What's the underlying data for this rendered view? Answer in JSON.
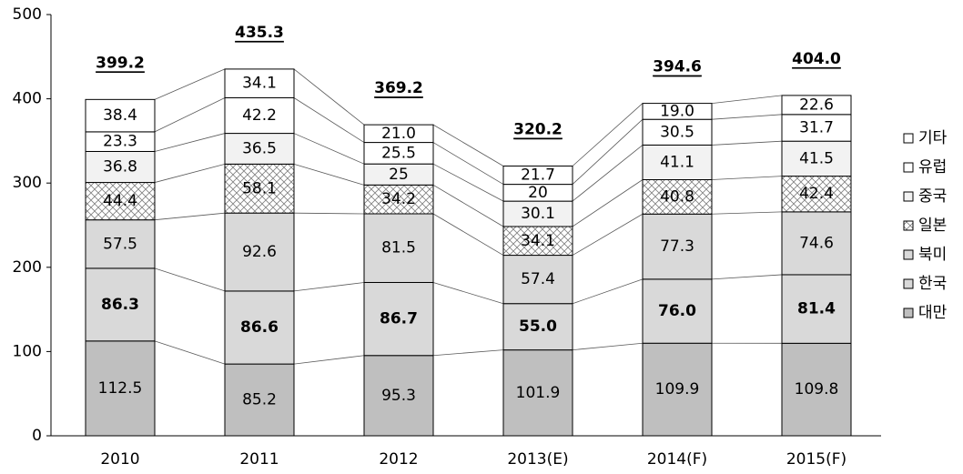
{
  "chart_data": {
    "type": "bar",
    "stacked": true,
    "categories": [
      "2010",
      "2011",
      "2012",
      "2013(E)",
      "2014(F)",
      "2015(F)"
    ],
    "totals": [
      "399.2",
      "435.3",
      "369.2",
      "320.2",
      "394.6",
      "404.0"
    ],
    "series": [
      {
        "name": "대만",
        "values": [
          112.5,
          85.2,
          95.3,
          101.9,
          109.9,
          109.8
        ],
        "labels": [
          "112.5",
          "85.2",
          "95.3",
          "101.9",
          "109.9",
          "109.8"
        ],
        "fill": "#bfbfbf",
        "pattern": "solid",
        "bold": false
      },
      {
        "name": "한국",
        "values": [
          86.3,
          86.6,
          86.7,
          55.0,
          76.0,
          81.4
        ],
        "labels": [
          "86.3",
          "86.6",
          "86.7",
          "55.0",
          "76.0",
          "81.4"
        ],
        "fill": "#d9d9d9",
        "pattern": "solid",
        "bold": true
      },
      {
        "name": "북미",
        "values": [
          57.5,
          92.6,
          81.5,
          57.4,
          77.3,
          74.6
        ],
        "labels": [
          "57.5",
          "92.6",
          "81.5",
          "57.4",
          "77.3",
          "74.6"
        ],
        "fill": "#d9d9d9",
        "pattern": "solid",
        "bold": false
      },
      {
        "name": "일본",
        "values": [
          44.4,
          58.1,
          34.2,
          34.1,
          40.8,
          42.4
        ],
        "labels": [
          "44.4",
          "58.1",
          "34.2",
          "34.1",
          "40.8",
          "42.4"
        ],
        "fill": "#ffffff",
        "pattern": "crosshatch",
        "bold": false
      },
      {
        "name": "중국",
        "values": [
          36.8,
          36.5,
          25,
          30.1,
          41.1,
          41.5
        ],
        "labels": [
          "36.8",
          "36.5",
          "25",
          "30.1",
          "41.1",
          "41.5"
        ],
        "fill": "#f2f2f2",
        "pattern": "solid",
        "bold": false
      },
      {
        "name": "유럽",
        "values": [
          23.3,
          42.2,
          25.5,
          20,
          30.5,
          31.7
        ],
        "labels": [
          "23.3",
          "42.2",
          "25.5",
          "20",
          "30.5",
          "31.7"
        ],
        "fill": "#ffffff",
        "pattern": "solid",
        "bold": false
      },
      {
        "name": "기타",
        "values": [
          38.4,
          34.1,
          21.0,
          21.7,
          19.0,
          22.6
        ],
        "labels": [
          "38.4",
          "34.1",
          "21.0",
          "21.7",
          "19.0",
          "22.6"
        ],
        "fill": "#ffffff",
        "pattern": "solid",
        "bold": false
      }
    ],
    "legend_order": [
      "기타",
      "유럽",
      "중국",
      "일본",
      "북미",
      "한국",
      "대만"
    ],
    "ylim": [
      0,
      500
    ],
    "yticks": [
      0,
      100,
      200,
      300,
      400,
      500
    ],
    "legend_position": "right",
    "connector_lines": true,
    "grid": false,
    "title": "",
    "xlabel": "",
    "ylabel": ""
  }
}
